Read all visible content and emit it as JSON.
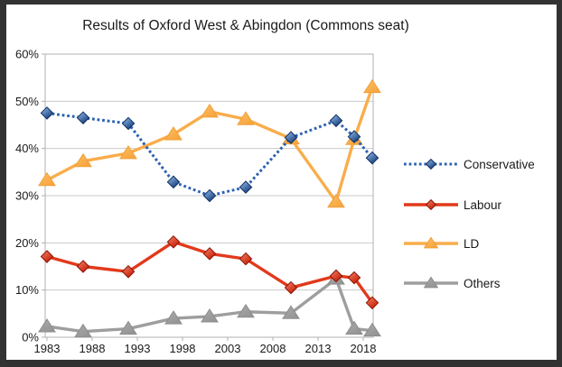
{
  "window": {
    "border_color": "#323232",
    "background": "#ffffff"
  },
  "chart_data": {
    "type": "line",
    "title": "Results of Oxford West & Abingdon (Commons seat)",
    "x_years": [
      1983,
      1987,
      1992,
      1997,
      2001,
      2005,
      2010,
      2015,
      2017,
      2019
    ],
    "series": [
      {
        "name": "Conservative",
        "color": "#2d62b1",
        "line_style": "dotted",
        "marker": "diamond",
        "marker_gradient": [
          "#9cc2f0",
          "#123a78"
        ],
        "marker_stroke": "#0d2f63",
        "values": [
          47.5,
          46.5,
          45.3,
          32.9,
          30.0,
          31.8,
          42.3,
          45.9,
          42.5,
          38.0
        ]
      },
      {
        "name": "Labour",
        "color": "#e2391b",
        "line_style": "solid",
        "marker": "diamond",
        "marker_gradient": [
          "#f4836a",
          "#c51d04"
        ],
        "marker_stroke": "#8c1405",
        "values": [
          17.1,
          15.0,
          13.9,
          20.2,
          17.7,
          16.6,
          10.5,
          13.0,
          12.6,
          7.3
        ]
      },
      {
        "name": "LD",
        "color": "#f9ad4b",
        "line_style": "solid",
        "marker": "triangle",
        "marker_gradient": [
          "#fbbf63",
          "#f8a53e"
        ],
        "marker_stroke": "#f09f38",
        "values": [
          33.3,
          37.3,
          39.0,
          43.0,
          47.8,
          46.2,
          42.1,
          28.7,
          42.0,
          53.0
        ]
      },
      {
        "name": "Others",
        "color": "#9e9e9e",
        "line_style": "solid",
        "marker": "triangle",
        "marker_gradient": [
          "#ababab",
          "#949494"
        ],
        "marker_stroke": "#8d8d8d",
        "values": [
          2.3,
          1.2,
          1.8,
          4.0,
          4.4,
          5.4,
          5.1,
          12.4,
          1.8,
          1.4
        ]
      }
    ],
    "x_ticks": [
      1983,
      1988,
      1993,
      1998,
      2003,
      2008,
      2013,
      2018
    ],
    "x_tick_labels": [
      "1983",
      "1988",
      "1993",
      "1998",
      "2003",
      "2008",
      "2013",
      "2018"
    ],
    "y_ticks": [
      0,
      10,
      20,
      30,
      40,
      50,
      60
    ],
    "y_tick_labels": [
      "0%",
      "10%",
      "20%",
      "30%",
      "40%",
      "50%",
      "60%"
    ],
    "xlim": [
      1982.8,
      2019.1
    ],
    "ylim": [
      0,
      60
    ],
    "grid": "horizontal-only",
    "legend_position": "right",
    "draw_order": [
      2,
      3,
      1,
      0
    ],
    "axis_color": "#b0b0b0",
    "grid_color": "#c9c9c9",
    "text_color": "#1a1a1a"
  }
}
